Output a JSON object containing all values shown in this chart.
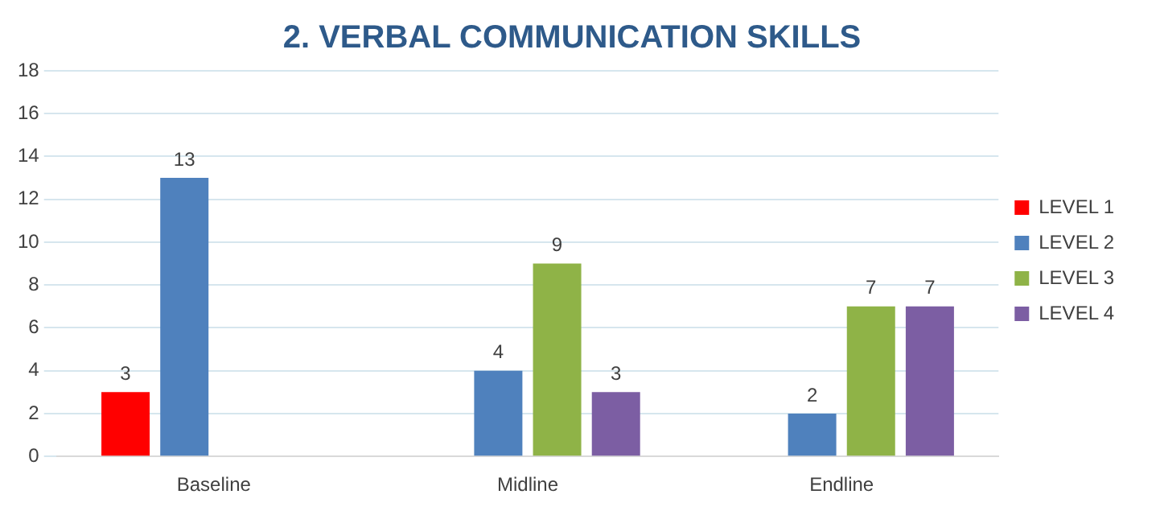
{
  "chart_data": {
    "type": "bar",
    "title": "2. VERBAL COMMUNICATION SKILLS",
    "categories": [
      "Baseline",
      "Midline",
      "Endline"
    ],
    "series": [
      {
        "name": "LEVEL 1",
        "color": "#ff0000",
        "values": [
          3,
          null,
          null
        ]
      },
      {
        "name": "LEVEL 2",
        "color": "#4f81bd",
        "values": [
          13,
          4,
          2
        ]
      },
      {
        "name": "LEVEL 3",
        "color": "#8fb347",
        "values": [
          null,
          9,
          7
        ]
      },
      {
        "name": "LEVEL 4",
        "color": "#7c5ea3",
        "values": [
          null,
          3,
          7
        ]
      }
    ],
    "ylim": [
      0,
      18
    ],
    "yticks": [
      0,
      2,
      4,
      6,
      8,
      10,
      12,
      14,
      16,
      18
    ],
    "grid": "y",
    "legend": "right",
    "data_labels": true
  }
}
